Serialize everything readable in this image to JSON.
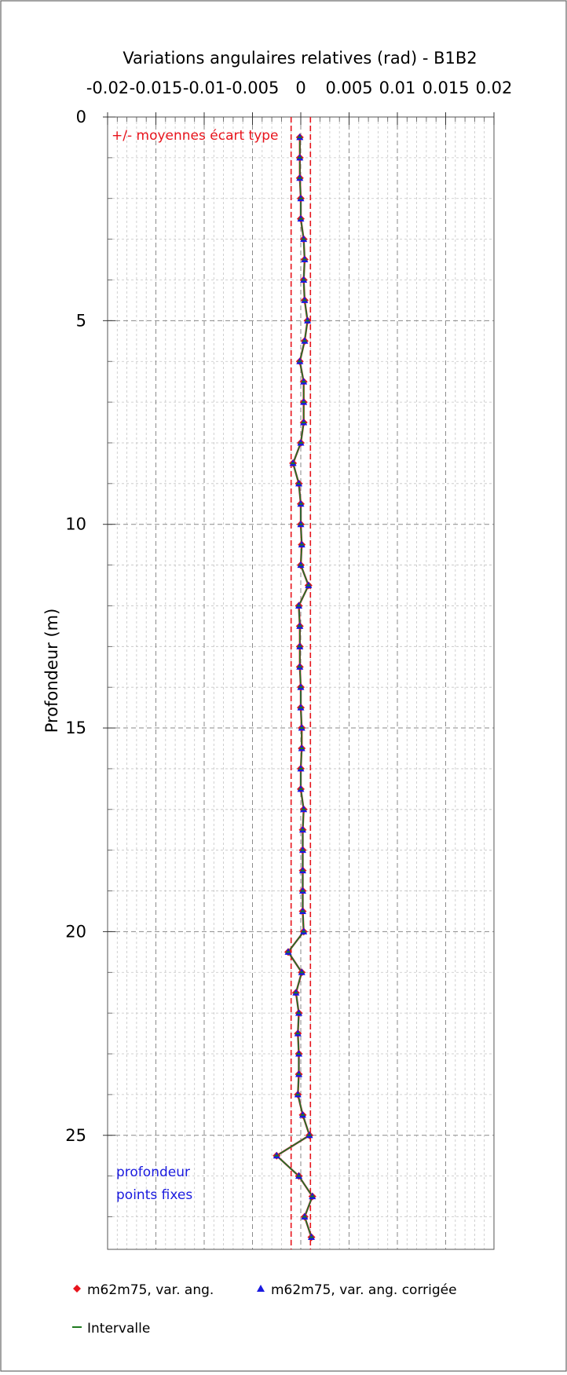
{
  "chart_data": {
    "type": "line",
    "title": "Variations angulaires relatives (rad) - B1B2",
    "xlabel": "Variations angulaires relatives (rad) - B1B2",
    "ylabel": "Profondeur (m)",
    "xlim": [
      -0.02,
      0.02
    ],
    "ylim": [
      0,
      27.8
    ],
    "y_inverted": true,
    "x_axis_position": "top",
    "x_ticks": [
      -0.02,
      -0.015,
      -0.01,
      -0.005,
      0,
      0.005,
      0.01,
      0.015,
      0.02
    ],
    "x_tick_labels": [
      "-0.02",
      "-0.015",
      "-0.01",
      "-0.005",
      "0",
      "0.005",
      "0.01",
      "0.015",
      "0.02"
    ],
    "y_ticks": [
      0,
      5,
      10,
      15,
      20,
      25
    ],
    "y_tick_labels": [
      "0",
      "5",
      "10",
      "15",
      "20",
      "25"
    ],
    "grid": true,
    "legend_position": "bottom",
    "reference_lines": {
      "label": "+/- moyennes écart type",
      "color": "#e8141c",
      "x": [
        -0.001,
        0.001
      ]
    },
    "annotation": {
      "lines": [
        "profondeur",
        "points fixes"
      ],
      "color": "#1a1adf"
    },
    "depths": [
      0.5,
      1.0,
      1.5,
      2.0,
      2.5,
      3.0,
      3.5,
      4.0,
      4.5,
      5.0,
      5.5,
      6.0,
      6.5,
      7.0,
      7.5,
      8.0,
      8.5,
      9.0,
      9.5,
      10.0,
      10.5,
      11.0,
      11.5,
      12.0,
      12.5,
      13.0,
      13.5,
      14.0,
      14.5,
      15.0,
      15.5,
      16.0,
      16.5,
      17.0,
      17.5,
      18.0,
      18.5,
      19.0,
      19.5,
      20.0,
      20.5,
      21.0,
      21.5,
      22.0,
      22.5,
      23.0,
      23.5,
      24.0,
      24.5,
      25.0,
      25.5,
      26.0,
      26.5,
      27.0,
      27.5
    ],
    "series": [
      {
        "name": "m62m75, var. ang.",
        "color": "#e8141c",
        "marker": "diamond",
        "x": [
          -0.0001,
          -0.0001,
          -0.0001,
          0.0,
          0.0,
          0.0003,
          0.0004,
          0.0003,
          0.0004,
          0.0007,
          0.0004,
          -0.0001,
          0.0003,
          0.0003,
          0.0003,
          0.0,
          -0.0008,
          -0.0002,
          0.0,
          0.0,
          0.0001,
          0.0,
          0.0008,
          -0.0002,
          -0.0001,
          -0.0001,
          -0.0001,
          0.0,
          0.0,
          0.0001,
          0.0001,
          0.0,
          0.0,
          0.0003,
          0.0002,
          0.0002,
          0.0002,
          0.0002,
          0.0002,
          0.0003,
          -0.0013,
          0.0001,
          -0.0005,
          -0.0002,
          -0.0003,
          -0.0002,
          -0.0002,
          -0.0003,
          0.0002,
          0.0009,
          -0.0025,
          -0.0002,
          0.0012,
          0.0004,
          0.0011
        ]
      },
      {
        "name": "m62m75, var. ang. corrigée",
        "color": "#1a1adf",
        "marker": "triangle",
        "x": [
          -0.0001,
          -0.0001,
          -0.0001,
          0.0,
          0.0,
          0.0003,
          0.0004,
          0.0003,
          0.0004,
          0.0007,
          0.0004,
          -0.0001,
          0.0003,
          0.0003,
          0.0003,
          0.0,
          -0.0008,
          -0.0002,
          0.0,
          0.0,
          0.0001,
          0.0,
          0.0008,
          -0.0002,
          -0.0001,
          -0.0001,
          -0.0001,
          0.0,
          0.0,
          0.0001,
          0.0001,
          0.0,
          0.0,
          0.0003,
          0.0002,
          0.0002,
          0.0002,
          0.0002,
          0.0002,
          0.0003,
          -0.0013,
          0.0001,
          -0.0005,
          -0.0002,
          -0.0003,
          -0.0002,
          -0.0002,
          -0.0003,
          0.0002,
          0.0009,
          -0.0025,
          -0.0002,
          0.0012,
          0.0004,
          0.0011
        ]
      },
      {
        "name": "Intervalle",
        "color": "#1f7a1f",
        "marker": "line",
        "x": [
          -0.0001,
          -0.0001,
          -0.0001,
          0.0,
          0.0,
          0.0003,
          0.0004,
          0.0003,
          0.0004,
          0.0007,
          0.0004,
          -0.0001,
          0.0003,
          0.0003,
          0.0003,
          0.0,
          -0.0008,
          -0.0002,
          0.0,
          0.0,
          0.0001,
          0.0,
          0.0008,
          -0.0002,
          -0.0001,
          -0.0001,
          -0.0001,
          0.0,
          0.0,
          0.0001,
          0.0001,
          0.0,
          0.0,
          0.0003,
          0.0002,
          0.0002,
          0.0002,
          0.0002,
          0.0002,
          0.0003,
          -0.0013,
          0.0001,
          -0.0005,
          -0.0002,
          -0.0003,
          -0.0002,
          -0.0002,
          -0.0003,
          0.0002,
          0.0009,
          -0.0025,
          -0.0002,
          0.0012,
          0.0004,
          0.0011
        ]
      }
    ]
  }
}
